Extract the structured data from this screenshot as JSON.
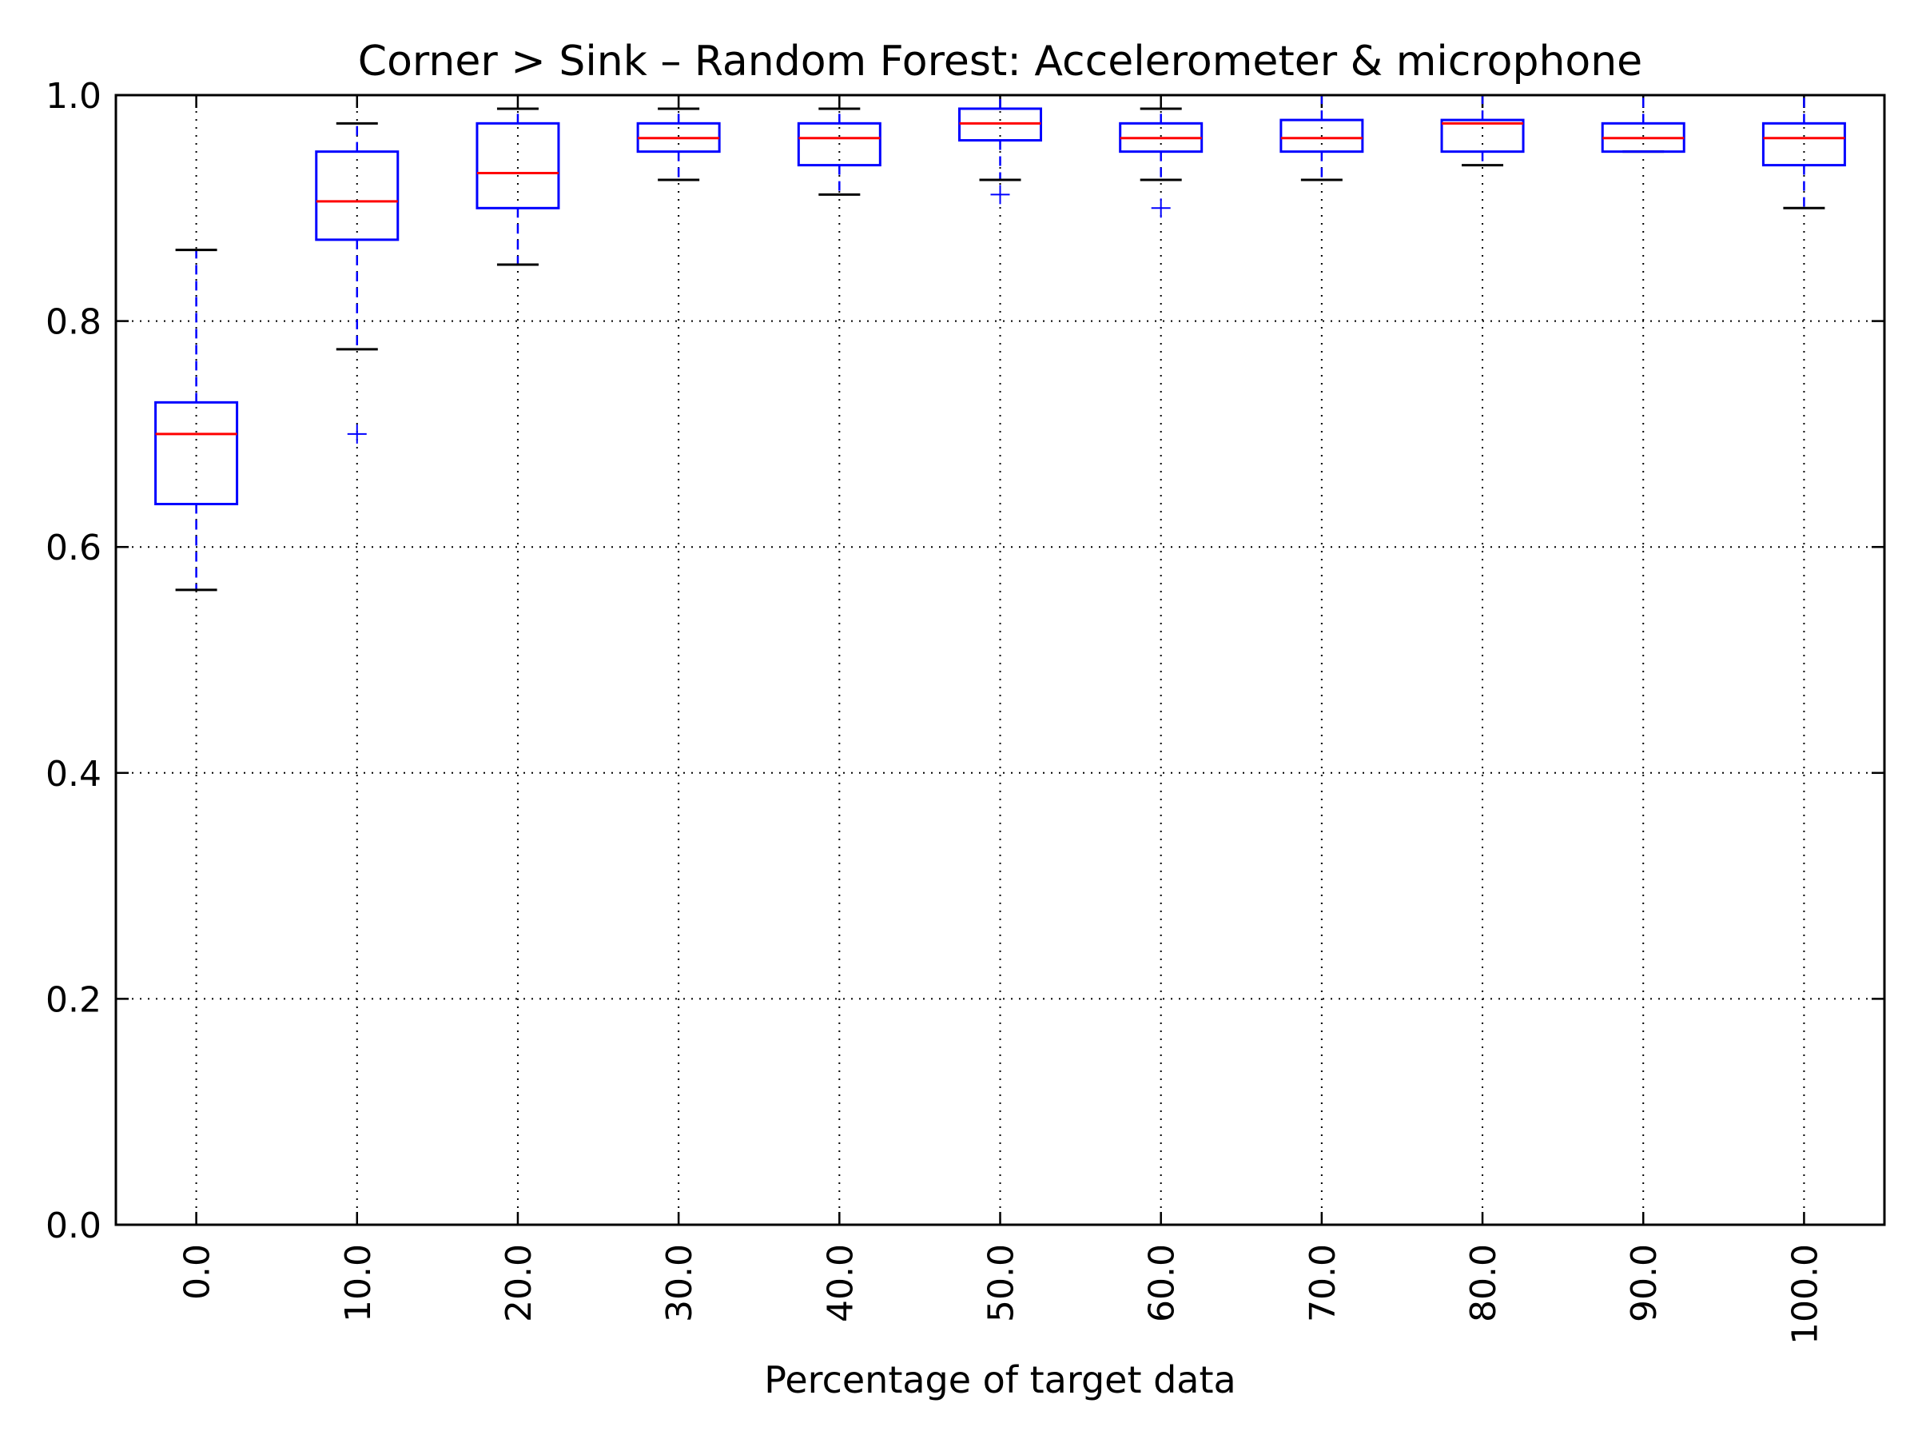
{
  "chart_data": {
    "type": "box",
    "title": "Corner > Sink – Random Forest: Accelerometer & microphone",
    "xlabel": "Percentage of target data",
    "ylabel": "",
    "ylim": [
      0.0,
      1.0
    ],
    "yticks": [
      "0.0",
      "0.2",
      "0.4",
      "0.6",
      "0.8",
      "1.0"
    ],
    "categories": [
      "0.0",
      "10.0",
      "20.0",
      "30.0",
      "40.0",
      "50.0",
      "60.0",
      "70.0",
      "80.0",
      "90.0",
      "100.0"
    ],
    "grid": true,
    "boxes": [
      {
        "whisker_low": 0.562,
        "q1": 0.638,
        "median": 0.7,
        "q3": 0.728,
        "whisker_high": 0.863,
        "outliers": []
      },
      {
        "whisker_low": 0.775,
        "q1": 0.872,
        "median": 0.906,
        "q3": 0.95,
        "whisker_high": 0.975,
        "outliers": [
          0.7
        ]
      },
      {
        "whisker_low": 0.85,
        "q1": 0.9,
        "median": 0.931,
        "q3": 0.975,
        "whisker_high": 0.988,
        "outliers": []
      },
      {
        "whisker_low": 0.925,
        "q1": 0.95,
        "median": 0.962,
        "q3": 0.975,
        "whisker_high": 0.988,
        "outliers": []
      },
      {
        "whisker_low": 0.912,
        "q1": 0.938,
        "median": 0.962,
        "q3": 0.975,
        "whisker_high": 0.988,
        "outliers": []
      },
      {
        "whisker_low": 0.925,
        "q1": 0.96,
        "median": 0.975,
        "q3": 0.988,
        "whisker_high": 1.0,
        "outliers": [
          0.912
        ]
      },
      {
        "whisker_low": 0.925,
        "q1": 0.95,
        "median": 0.962,
        "q3": 0.975,
        "whisker_high": 0.988,
        "outliers": [
          0.9
        ]
      },
      {
        "whisker_low": 0.925,
        "q1": 0.95,
        "median": 0.962,
        "q3": 0.978,
        "whisker_high": 1.0,
        "outliers": []
      },
      {
        "whisker_low": 0.938,
        "q1": 0.95,
        "median": 0.975,
        "q3": 0.978,
        "whisker_high": 1.0,
        "outliers": []
      },
      {
        "whisker_low": 0.95,
        "q1": 0.95,
        "median": 0.962,
        "q3": 0.975,
        "whisker_high": 1.0,
        "outliers": []
      },
      {
        "whisker_low": 0.9,
        "q1": 0.938,
        "median": 0.962,
        "q3": 0.975,
        "whisker_high": 1.0,
        "outliers": []
      }
    ],
    "colors": {
      "box": "#0000ff",
      "median": "#ff0000",
      "caps": "#000000",
      "grid": "#000000",
      "axes": "#000000"
    }
  }
}
